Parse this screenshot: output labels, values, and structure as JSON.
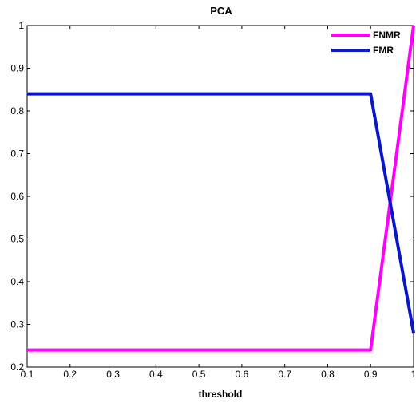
{
  "chart_data": {
    "type": "line",
    "title": "PCA",
    "xlabel": "threshold",
    "ylabel": "",
    "xlim": [
      0.1,
      1
    ],
    "ylim": [
      0.2,
      1
    ],
    "xticks": [
      "0.1",
      "0.2",
      "0.3",
      "0.4",
      "0.5",
      "0.6",
      "0.7",
      "0.8",
      "0.9",
      "1"
    ],
    "yticks": [
      "0.2",
      "0.3",
      "0.4",
      "0.5",
      "0.6",
      "0.7",
      "0.8",
      "0.9",
      "1"
    ],
    "grid": false,
    "legend_position": "top-right",
    "series": [
      {
        "name": "FNMR",
        "color": "#ff00ff",
        "x": [
          0.1,
          0.9,
          1.0
        ],
        "y": [
          0.24,
          0.24,
          1.0
        ]
      },
      {
        "name": "FMR",
        "color": "#0a17c8",
        "x": [
          0.1,
          0.9,
          1.0
        ],
        "y": [
          0.84,
          0.84,
          0.28
        ]
      }
    ]
  }
}
